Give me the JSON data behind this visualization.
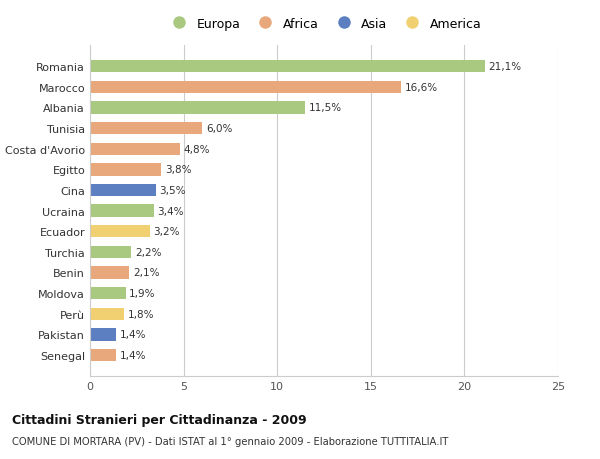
{
  "countries": [
    "Romania",
    "Marocco",
    "Albania",
    "Tunisia",
    "Costa d'Avorio",
    "Egitto",
    "Cina",
    "Ucraina",
    "Ecuador",
    "Turchia",
    "Benin",
    "Moldova",
    "Perù",
    "Pakistan",
    "Senegal"
  ],
  "values": [
    21.1,
    16.6,
    11.5,
    6.0,
    4.8,
    3.8,
    3.5,
    3.4,
    3.2,
    2.2,
    2.1,
    1.9,
    1.8,
    1.4,
    1.4
  ],
  "labels": [
    "21,1%",
    "16,6%",
    "11,5%",
    "6,0%",
    "4,8%",
    "3,8%",
    "3,5%",
    "3,4%",
    "3,2%",
    "2,2%",
    "2,1%",
    "1,9%",
    "1,8%",
    "1,4%",
    "1,4%"
  ],
  "continent": [
    "Europa",
    "Africa",
    "Europa",
    "Africa",
    "Africa",
    "Africa",
    "Asia",
    "Europa",
    "America",
    "Europa",
    "Africa",
    "Europa",
    "America",
    "Asia",
    "Africa"
  ],
  "colors": {
    "Europa": "#a8c97f",
    "Africa": "#e8a87c",
    "Asia": "#5b7fc1",
    "America": "#f0d070"
  },
  "legend_order": [
    "Europa",
    "Africa",
    "Asia",
    "America"
  ],
  "title1": "Cittadini Stranieri per Cittadinanza - 2009",
  "title2": "COMUNE DI MORTARA (PV) - Dati ISTAT al 1° gennaio 2009 - Elaborazione TUTTITALIA.IT",
  "xlim": [
    0,
    25
  ],
  "xticks": [
    0,
    5,
    10,
    15,
    20,
    25
  ],
  "bg_color": "#ffffff",
  "grid_color": "#cccccc",
  "bar_height": 0.6
}
